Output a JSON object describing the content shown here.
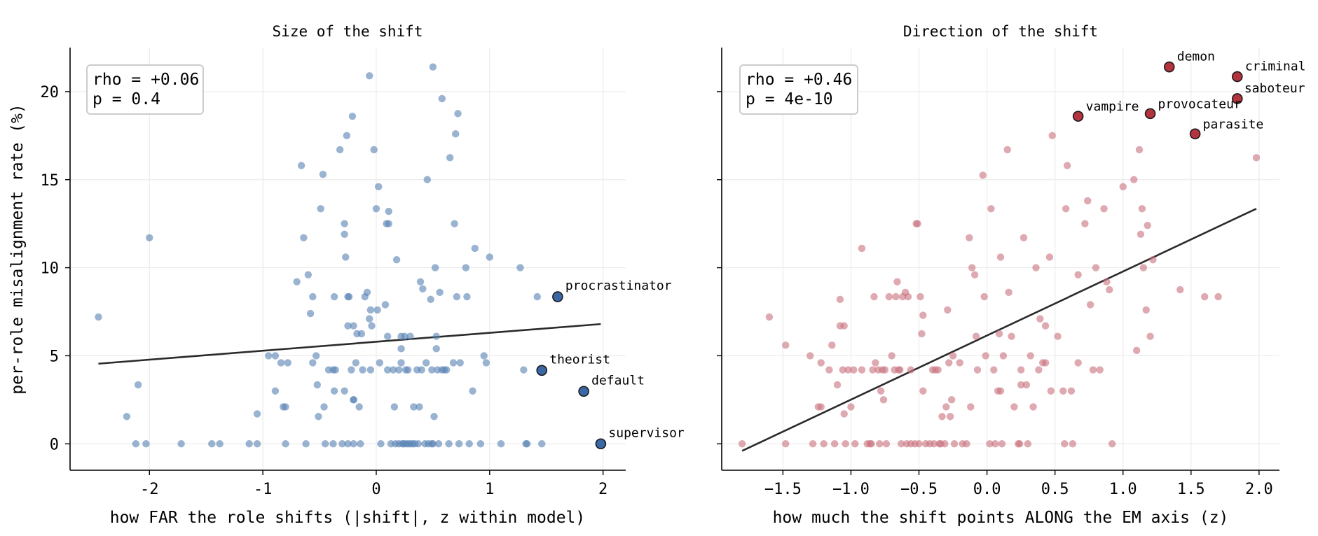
{
  "chart_data": [
    {
      "type": "scatter",
      "title": "Size of the shift",
      "xlabel": "how FAR the role shifts  (|shift|, z within model)",
      "ylabel": "per-role misalignment rate (%)",
      "xlim": [
        -2.7,
        2.2
      ],
      "ylim": [
        -1.5,
        22.5
      ],
      "xticks": [
        "-2",
        "-1",
        "0",
        "1",
        "2"
      ],
      "yticks": [
        "0",
        "5",
        "10",
        "15",
        "20"
      ],
      "grid": true,
      "point_color": "#5b85b5",
      "highlight_color": "#3a68a4",
      "stats": {
        "rho": "rho = +0.06",
        "p": "p = 0.4"
      },
      "fit_line": [
        [
          -2.45,
          4.55
        ],
        [
          1.98,
          6.8
        ]
      ],
      "highlighted": [
        {
          "label": "procrastinator",
          "x": 1.6,
          "y": 8.35
        },
        {
          "label": "theorist",
          "x": 1.46,
          "y": 4.17
        },
        {
          "label": "default",
          "x": 1.83,
          "y": 2.98
        },
        {
          "label": "supervisor",
          "x": 1.98,
          "y": 0.0
        }
      ],
      "points": [
        [
          -2.45,
          7.2
        ],
        [
          -2.0,
          11.7
        ],
        [
          -2.1,
          3.35
        ],
        [
          -2.2,
          1.55
        ],
        [
          -2.12,
          0
        ],
        [
          -2.03,
          0
        ],
        [
          -1.72,
          0
        ],
        [
          -1.45,
          0
        ],
        [
          -1.38,
          0
        ],
        [
          -1.12,
          0
        ],
        [
          -1.05,
          0
        ],
        [
          -1.05,
          1.7
        ],
        [
          -0.95,
          5.0
        ],
        [
          -0.89,
          5.0
        ],
        [
          -0.89,
          3.0
        ],
        [
          -0.84,
          4.6
        ],
        [
          -0.82,
          2.1
        ],
        [
          -0.8,
          2.1
        ],
        [
          -0.78,
          4.6
        ],
        [
          -0.8,
          0
        ],
        [
          -0.7,
          9.2
        ],
        [
          -0.66,
          15.8
        ],
        [
          -0.64,
          11.7
        ],
        [
          -0.62,
          0
        ],
        [
          -0.6,
          9.6
        ],
        [
          -0.58,
          7.4
        ],
        [
          -0.56,
          8.35
        ],
        [
          -0.56,
          4.6
        ],
        [
          -0.53,
          5.0
        ],
        [
          -0.52,
          3.35
        ],
        [
          -0.51,
          1.55
        ],
        [
          -0.49,
          13.35
        ],
        [
          -0.47,
          15.3
        ],
        [
          -0.46,
          2.1
        ],
        [
          -0.45,
          0
        ],
        [
          -0.42,
          4.2
        ],
        [
          -0.38,
          4.2
        ],
        [
          -0.37,
          3.0
        ],
        [
          -0.37,
          8.35
        ],
        [
          -0.36,
          4.2
        ],
        [
          -0.38,
          0
        ],
        [
          -0.32,
          16.7
        ],
        [
          -0.3,
          0
        ],
        [
          -0.28,
          12.5
        ],
        [
          -0.28,
          11.9
        ],
        [
          -0.28,
          3.0
        ],
        [
          -0.27,
          10.6
        ],
        [
          -0.26,
          17.5
        ],
        [
          -0.25,
          6.7
        ],
        [
          -0.25,
          0
        ],
        [
          -0.25,
          8.35
        ],
        [
          -0.24,
          8.35
        ],
        [
          -0.22,
          4.2
        ],
        [
          -0.21,
          18.6
        ],
        [
          -0.2,
          6.7
        ],
        [
          -0.2,
          2.5
        ],
        [
          -0.2,
          2.5
        ],
        [
          -0.2,
          0
        ],
        [
          -0.18,
          4.6
        ],
        [
          -0.17,
          6.25
        ],
        [
          -0.15,
          2.1
        ],
        [
          -0.14,
          0
        ],
        [
          -0.13,
          6.25
        ],
        [
          -0.12,
          4.2
        ],
        [
          -0.1,
          8.35
        ],
        [
          -0.08,
          8.6
        ],
        [
          -0.06,
          20.9
        ],
        [
          -0.06,
          7.1
        ],
        [
          -0.05,
          7.6
        ],
        [
          -0.05,
          4.2
        ],
        [
          -0.04,
          6.7
        ],
        [
          -0.02,
          16.7
        ],
        [
          0.0,
          13.35
        ],
        [
          0.01,
          7.6
        ],
        [
          0.02,
          14.6
        ],
        [
          0.03,
          4.6
        ],
        [
          0.04,
          0
        ],
        [
          0.08,
          7.9
        ],
        [
          0.09,
          12.5
        ],
        [
          0.1,
          6.1
        ],
        [
          0.1,
          4.2
        ],
        [
          0.11,
          13.2
        ],
        [
          0.11,
          12.5
        ],
        [
          0.13,
          0
        ],
        [
          0.15,
          4.2
        ],
        [
          0.16,
          2.1
        ],
        [
          0.17,
          0
        ],
        [
          0.18,
          10.45
        ],
        [
          0.2,
          4.2
        ],
        [
          0.2,
          0
        ],
        [
          0.22,
          6.1
        ],
        [
          0.22,
          4.6
        ],
        [
          0.22,
          5.4
        ],
        [
          0.23,
          0
        ],
        [
          0.24,
          0
        ],
        [
          0.25,
          6.1
        ],
        [
          0.26,
          4.2
        ],
        [
          0.26,
          0
        ],
        [
          0.28,
          4.2
        ],
        [
          0.28,
          0
        ],
        [
          0.3,
          6.1
        ],
        [
          0.3,
          0
        ],
        [
          0.32,
          0
        ],
        [
          0.33,
          2.1
        ],
        [
          0.34,
          0
        ],
        [
          0.36,
          4.2
        ],
        [
          0.37,
          0
        ],
        [
          0.38,
          2.1
        ],
        [
          0.39,
          9.2
        ],
        [
          0.4,
          4.2
        ],
        [
          0.41,
          8.8
        ],
        [
          0.43,
          0
        ],
        [
          0.44,
          4.6
        ],
        [
          0.45,
          15.0
        ],
        [
          0.46,
          0
        ],
        [
          0.48,
          8.2
        ],
        [
          0.49,
          0
        ],
        [
          0.49,
          4.2
        ],
        [
          0.5,
          21.4
        ],
        [
          0.5,
          0
        ],
        [
          0.51,
          1.55
        ],
        [
          0.52,
          10.0
        ],
        [
          0.53,
          5.4
        ],
        [
          0.53,
          6.1
        ],
        [
          0.54,
          4.2
        ],
        [
          0.55,
          0
        ],
        [
          0.56,
          8.6
        ],
        [
          0.58,
          19.6
        ],
        [
          0.58,
          4.2
        ],
        [
          0.6,
          4.2
        ],
        [
          0.62,
          4.2
        ],
        [
          0.64,
          0
        ],
        [
          0.65,
          16.25
        ],
        [
          0.68,
          4.6
        ],
        [
          0.69,
          12.5
        ],
        [
          0.7,
          17.6
        ],
        [
          0.71,
          8.35
        ],
        [
          0.72,
          18.75
        ],
        [
          0.73,
          0
        ],
        [
          0.74,
          4.6
        ],
        [
          0.79,
          10.0
        ],
        [
          0.8,
          8.35
        ],
        [
          0.82,
          0
        ],
        [
          0.85,
          3.0
        ],
        [
          0.87,
          11.1
        ],
        [
          0.92,
          0
        ],
        [
          0.95,
          5.0
        ],
        [
          0.97,
          4.6
        ],
        [
          1.0,
          10.6
        ],
        [
          1.1,
          0
        ],
        [
          1.27,
          10.0
        ],
        [
          1.3,
          4.2
        ],
        [
          1.32,
          0
        ],
        [
          1.33,
          0
        ],
        [
          1.42,
          8.35
        ],
        [
          1.46,
          0
        ]
      ]
    },
    {
      "type": "scatter",
      "title": "Direction of the shift",
      "xlabel": "how much the shift points ALONG the EM axis  (z)",
      "ylabel": "",
      "xlim": [
        -1.95,
        2.15
      ],
      "ylim": [
        -1.5,
        22.5
      ],
      "xticks": [
        "−1.5",
        "−1.0",
        "−0.5",
        "0.0",
        "0.5",
        "1.0",
        "1.5",
        "2.0"
      ],
      "yticks": [],
      "grid": true,
      "point_color": "#c9747f",
      "highlight_color": "#b3343f",
      "stats": {
        "rho": "rho = +0.46",
        "p": "p = 4e-10"
      },
      "fit_line": [
        [
          -1.8,
          -0.4
        ],
        [
          1.98,
          13.35
        ]
      ],
      "highlighted": [
        {
          "label": "demon",
          "x": 1.34,
          "y": 21.4
        },
        {
          "label": "criminal",
          "x": 1.84,
          "y": 20.85
        },
        {
          "label": "saboteur",
          "x": 1.84,
          "y": 19.6
        },
        {
          "label": "vampire",
          "x": 0.67,
          "y": 18.6
        },
        {
          "label": "provocateur",
          "x": 1.2,
          "y": 18.75
        },
        {
          "label": "parasite",
          "x": 1.53,
          "y": 17.6
        }
      ],
      "points": [
        [
          -1.8,
          0
        ],
        [
          -1.6,
          7.2
        ],
        [
          -1.48,
          5.6
        ],
        [
          -1.48,
          0
        ],
        [
          -1.3,
          5.0
        ],
        [
          -1.28,
          0
        ],
        [
          -1.24,
          2.1
        ],
        [
          -1.22,
          2.1
        ],
        [
          -1.22,
          4.6
        ],
        [
          -1.2,
          0
        ],
        [
          -1.16,
          4.2
        ],
        [
          -1.14,
          5.6
        ],
        [
          -1.12,
          0
        ],
        [
          -1.1,
          3.35
        ],
        [
          -1.08,
          8.2
        ],
        [
          -1.08,
          6.7
        ],
        [
          -1.06,
          4.2
        ],
        [
          -1.05,
          1.7
        ],
        [
          -1.05,
          6.7
        ],
        [
          -1.04,
          0
        ],
        [
          -1.02,
          4.2
        ],
        [
          -1.0,
          2.1
        ],
        [
          -0.98,
          4.2
        ],
        [
          -0.97,
          0
        ],
        [
          -0.92,
          11.1
        ],
        [
          -0.92,
          4.2
        ],
        [
          -0.88,
          0
        ],
        [
          -0.86,
          0
        ],
        [
          -0.85,
          0
        ],
        [
          -0.84,
          4.2
        ],
        [
          -0.83,
          8.35
        ],
        [
          -0.82,
          4.6
        ],
        [
          -0.8,
          4.2
        ],
        [
          -0.79,
          0
        ],
        [
          -0.78,
          3.0
        ],
        [
          -0.77,
          4.2
        ],
        [
          -0.76,
          2.5
        ],
        [
          -0.75,
          4.2
        ],
        [
          -0.74,
          0
        ],
        [
          -0.72,
          8.35
        ],
        [
          -0.7,
          5.0
        ],
        [
          -0.68,
          4.2
        ],
        [
          -0.67,
          8.35
        ],
        [
          -0.66,
          9.2
        ],
        [
          -0.65,
          4.2
        ],
        [
          -0.64,
          4.2
        ],
        [
          -0.63,
          0
        ],
        [
          -0.62,
          8.35
        ],
        [
          -0.6,
          8.6
        ],
        [
          -0.59,
          0
        ],
        [
          -0.58,
          8.35
        ],
        [
          -0.56,
          4.2
        ],
        [
          -0.56,
          0
        ],
        [
          -0.53,
          0
        ],
        [
          -0.52,
          12.5
        ],
        [
          -0.51,
          12.5
        ],
        [
          -0.5,
          0
        ],
        [
          -0.49,
          8.35
        ],
        [
          -0.48,
          6.25
        ],
        [
          -0.47,
          7.3
        ],
        [
          -0.47,
          3.0
        ],
        [
          -0.45,
          0
        ],
        [
          -0.42,
          0
        ],
        [
          -0.4,
          4.2
        ],
        [
          -0.39,
          0
        ],
        [
          -0.38,
          4.2
        ],
        [
          -0.36,
          4.2
        ],
        [
          -0.35,
          0
        ],
        [
          -0.34,
          0
        ],
        [
          -0.33,
          1.55
        ],
        [
          -0.31,
          0
        ],
        [
          -0.3,
          2.1
        ],
        [
          -0.29,
          7.6
        ],
        [
          -0.28,
          4.6
        ],
        [
          -0.27,
          1.55
        ],
        [
          -0.26,
          2.5
        ],
        [
          -0.25,
          5.0
        ],
        [
          -0.24,
          0
        ],
        [
          -0.2,
          4.6
        ],
        [
          -0.18,
          0
        ],
        [
          -0.15,
          0
        ],
        [
          -0.13,
          11.7
        ],
        [
          -0.12,
          2.1
        ],
        [
          -0.11,
          10.0
        ],
        [
          -0.09,
          9.6
        ],
        [
          -0.08,
          6.1
        ],
        [
          -0.07,
          4.2
        ],
        [
          -0.03,
          15.25
        ],
        [
          -0.02,
          8.35
        ],
        [
          -0.01,
          5.0
        ],
        [
          0.02,
          0
        ],
        [
          0.03,
          13.35
        ],
        [
          0.05,
          4.2
        ],
        [
          0.06,
          0
        ],
        [
          0.08,
          3.0
        ],
        [
          0.09,
          6.25
        ],
        [
          0.1,
          10.6
        ],
        [
          0.1,
          3.0
        ],
        [
          0.11,
          0
        ],
        [
          0.12,
          5.0
        ],
        [
          0.15,
          16.7
        ],
        [
          0.16,
          8.6
        ],
        [
          0.18,
          6.1
        ],
        [
          0.2,
          2.1
        ],
        [
          0.23,
          0
        ],
        [
          0.24,
          0
        ],
        [
          0.25,
          4.2
        ],
        [
          0.25,
          3.35
        ],
        [
          0.27,
          11.7
        ],
        [
          0.29,
          3.35
        ],
        [
          0.3,
          0
        ],
        [
          0.32,
          5.0
        ],
        [
          0.34,
          2.1
        ],
        [
          0.36,
          10.0
        ],
        [
          0.38,
          4.2
        ],
        [
          0.39,
          7.1
        ],
        [
          0.41,
          4.6
        ],
        [
          0.43,
          6.7
        ],
        [
          0.43,
          4.6
        ],
        [
          0.46,
          10.6
        ],
        [
          0.47,
          3.0
        ],
        [
          0.48,
          17.5
        ],
        [
          0.52,
          6.1
        ],
        [
          0.56,
          3.0
        ],
        [
          0.57,
          0
        ],
        [
          0.58,
          13.35
        ],
        [
          0.59,
          15.8
        ],
        [
          0.62,
          3.0
        ],
        [
          0.63,
          0
        ],
        [
          0.67,
          9.6
        ],
        [
          0.67,
          4.6
        ],
        [
          0.72,
          12.5
        ],
        [
          0.74,
          13.8
        ],
        [
          0.76,
          7.9
        ],
        [
          0.78,
          4.2
        ],
        [
          0.8,
          10.0
        ],
        [
          0.83,
          4.2
        ],
        [
          0.86,
          13.35
        ],
        [
          0.88,
          9.2
        ],
        [
          0.9,
          8.75
        ],
        [
          0.92,
          0
        ],
        [
          1.0,
          14.6
        ],
        [
          1.08,
          15.0
        ],
        [
          1.1,
          5.3
        ],
        [
          1.12,
          16.7
        ],
        [
          1.13,
          11.9
        ],
        [
          1.14,
          13.35
        ],
        [
          1.15,
          10.0
        ],
        [
          1.17,
          7.6
        ],
        [
          1.18,
          12.4
        ],
        [
          1.2,
          6.1
        ],
        [
          1.22,
          10.45
        ],
        [
          1.42,
          8.75
        ],
        [
          1.6,
          8.35
        ],
        [
          1.7,
          8.35
        ],
        [
          1.98,
          16.25
        ]
      ]
    }
  ]
}
